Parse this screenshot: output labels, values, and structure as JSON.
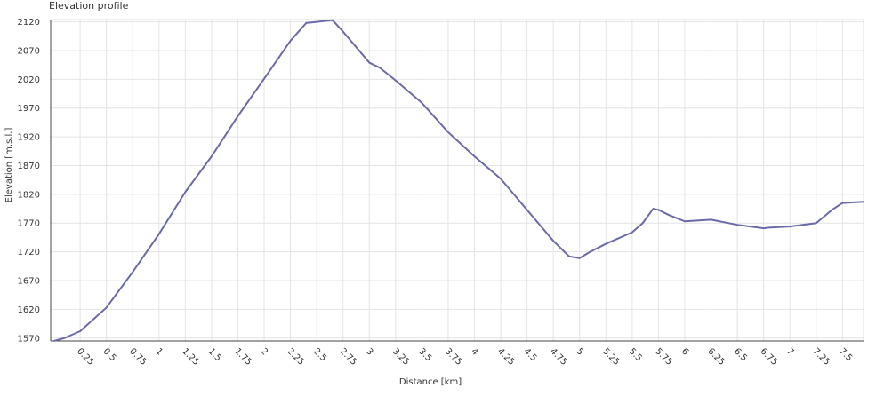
{
  "chart_data": {
    "type": "line",
    "title": "Elevation profile",
    "x_label": "Distance [km]",
    "y_label": "Elevation [m.s.l.]",
    "x": [
      0,
      0.1,
      0.25,
      0.5,
      0.75,
      1.0,
      1.25,
      1.5,
      1.75,
      2.0,
      2.25,
      2.4,
      2.5,
      2.55,
      2.65,
      2.75,
      3.0,
      3.1,
      3.25,
      3.5,
      3.75,
      4.0,
      4.25,
      4.5,
      4.75,
      4.9,
      5.0,
      5.1,
      5.25,
      5.5,
      5.6,
      5.7,
      5.75,
      5.85,
      6.0,
      6.25,
      6.5,
      6.75,
      6.8,
      7.0,
      7.25,
      7.4,
      7.5,
      7.7
    ],
    "series": [
      {
        "name": "Elevation",
        "color": "#6a6aa8",
        "values": [
          1565,
          1570,
          1582,
          1623,
          1685,
          1751,
          1824,
          1886,
          1956,
          2021,
          2087,
          2118,
          2120,
          2121,
          2123,
          2103,
          2049,
          2040,
          2018,
          1979,
          1928,
          1886,
          1847,
          1793,
          1739,
          1712,
          1709,
          1720,
          1734,
          1754,
          1770,
          1795,
          1793,
          1784,
          1773,
          1776,
          1767,
          1761,
          1762,
          1764,
          1770,
          1793,
          1805,
          1807
        ]
      }
    ],
    "xlim": [
      -0.03,
      7.7
    ],
    "ylim": [
      1565,
      2124
    ],
    "xticks": [
      0.25,
      0.5,
      0.75,
      1,
      1.25,
      1.5,
      1.75,
      2,
      2.25,
      2.5,
      2.75,
      3,
      3.25,
      3.5,
      3.75,
      4,
      4.25,
      4.5,
      4.75,
      5,
      5.25,
      5.5,
      5.75,
      6,
      6.25,
      6.5,
      6.75,
      7,
      7.25,
      7.5
    ],
    "yticks": [
      1570,
      1620,
      1670,
      1720,
      1770,
      1820,
      1870,
      1920,
      1970,
      2020,
      2070,
      2120
    ],
    "grid": true
  }
}
